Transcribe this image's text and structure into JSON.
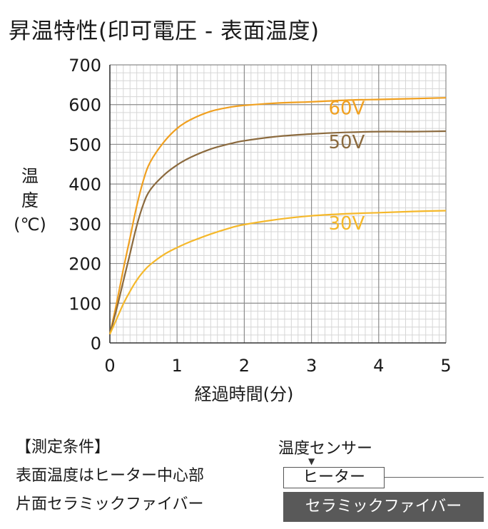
{
  "title": "昇温特性(印可電圧 - 表面温度)",
  "chart_data": {
    "type": "line",
    "title": "昇温特性(印可電圧 - 表面温度)",
    "xlabel": "経過時間(分)",
    "ylabel_chars": [
      "温",
      "度",
      "(℃)"
    ],
    "xlim": [
      0,
      5
    ],
    "ylim": [
      0,
      700
    ],
    "x_ticks": [
      "0",
      "1",
      "2",
      "3",
      "4",
      "5"
    ],
    "y_ticks": [
      "0",
      "100",
      "200",
      "300",
      "400",
      "500",
      "600",
      "700"
    ],
    "grid": true,
    "series": [
      {
        "name": "60V",
        "color": "#f0a020",
        "x": [
          0,
          0.1,
          0.2,
          0.3,
          0.4,
          0.5,
          0.6,
          0.8,
          1.0,
          1.2,
          1.5,
          1.8,
          2.0,
          2.5,
          3.0,
          3.5,
          4.0,
          4.5,
          5.0
        ],
        "y": [
          22,
          100,
          185,
          265,
          345,
          410,
          455,
          505,
          540,
          562,
          583,
          594,
          598,
          604,
          607,
          611,
          613,
          615,
          617
        ]
      },
      {
        "name": "50V",
        "color": "#8b6a3e",
        "x": [
          0,
          0.1,
          0.2,
          0.3,
          0.4,
          0.5,
          0.6,
          0.8,
          1.0,
          1.2,
          1.5,
          1.8,
          2.0,
          2.5,
          3.0,
          3.5,
          4.0,
          4.5,
          5.0
        ],
        "y": [
          22,
          85,
          155,
          225,
          295,
          350,
          385,
          422,
          448,
          467,
          488,
          502,
          509,
          520,
          526,
          530,
          532,
          532,
          533
        ]
      },
      {
        "name": "30V",
        "color": "#f5b82a",
        "x": [
          0,
          0.1,
          0.2,
          0.3,
          0.4,
          0.5,
          0.6,
          0.8,
          1.0,
          1.2,
          1.5,
          1.8,
          2.0,
          2.5,
          3.0,
          3.5,
          4.0,
          4.5,
          5.0
        ],
        "y": [
          22,
          60,
          98,
          130,
          158,
          180,
          197,
          222,
          240,
          255,
          274,
          290,
          298,
          311,
          320,
          325,
          328,
          331,
          333
        ]
      }
    ],
    "annotations": [
      {
        "text": "60V",
        "x": 3.2,
        "y": 575,
        "color": "#f0a020"
      },
      {
        "text": "50V",
        "x": 3.2,
        "y": 490,
        "color": "#8b6a3e"
      },
      {
        "text": "30V",
        "x": 3.2,
        "y": 285,
        "color": "#f5b82a"
      }
    ]
  },
  "conditions": {
    "heading": "【測定条件】",
    "line1": "表面温度はヒーター中心部",
    "line2": "片面セラミックファイバー"
  },
  "diagram": {
    "sensor_label": "温度センサー",
    "heater_label": "ヒーター",
    "fiber_label": "セラミックファイバー"
  }
}
